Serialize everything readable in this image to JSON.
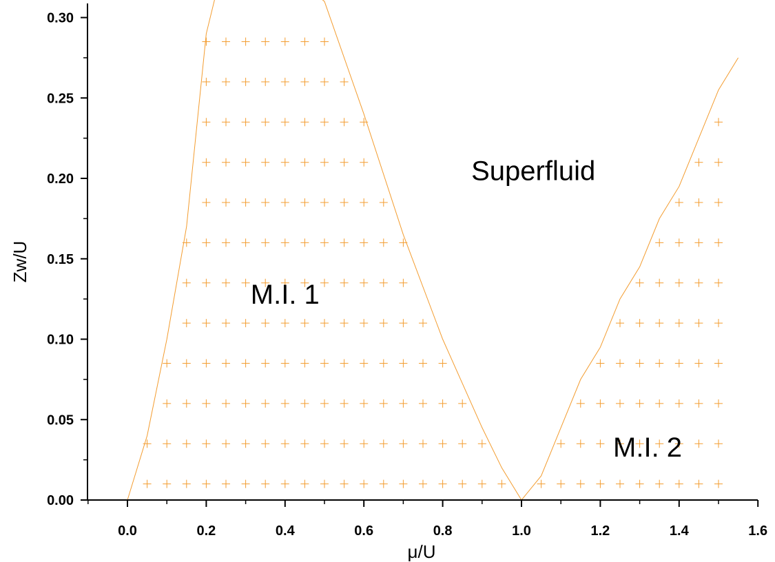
{
  "chart_data": {
    "type": "area",
    "xlabel": "μ/U",
    "ylabel": "Zw/U",
    "xlim": [
      -0.1,
      1.6
    ],
    "ylim": [
      0.0,
      0.31
    ],
    "x_ticks": [
      "0.0",
      "0.2",
      "0.4",
      "0.6",
      "0.8",
      "1.0",
      "1.2",
      "1.4",
      "1.6"
    ],
    "y_ticks": [
      "0.00",
      "0.05",
      "0.10",
      "0.15",
      "0.20",
      "0.25",
      "0.30"
    ],
    "grid": false,
    "line_color": "#f39c2f",
    "marker": "+",
    "grid_step": 0.05,
    "boundary": [
      [
        0.0,
        0.0
      ],
      [
        0.05,
        0.04
      ],
      [
        0.1,
        0.1
      ],
      [
        0.15,
        0.17
      ],
      [
        0.2,
        0.29
      ],
      [
        0.225,
        0.315
      ],
      [
        0.475,
        0.315
      ],
      [
        0.5,
        0.31
      ],
      [
        0.6,
        0.24
      ],
      [
        0.7,
        0.165
      ],
      [
        0.8,
        0.1
      ],
      [
        0.9,
        0.045
      ],
      [
        0.95,
        0.02
      ],
      [
        1.0,
        0.0
      ],
      [
        1.05,
        0.015
      ],
      [
        1.1,
        0.045
      ],
      [
        1.15,
        0.075
      ],
      [
        1.2,
        0.095
      ],
      [
        1.25,
        0.125
      ],
      [
        1.3,
        0.145
      ],
      [
        1.35,
        0.175
      ],
      [
        1.4,
        0.195
      ],
      [
        1.45,
        0.225
      ],
      [
        1.5,
        0.255
      ],
      [
        1.55,
        0.275
      ]
    ],
    "annotations": [
      {
        "text": "Superfluid",
        "x": 1.03,
        "y": 0.205
      },
      {
        "text": "M.I. 1",
        "x": 0.4,
        "y": 0.128
      },
      {
        "text": "M.I. 2",
        "x": 1.32,
        "y": 0.033
      }
    ]
  }
}
